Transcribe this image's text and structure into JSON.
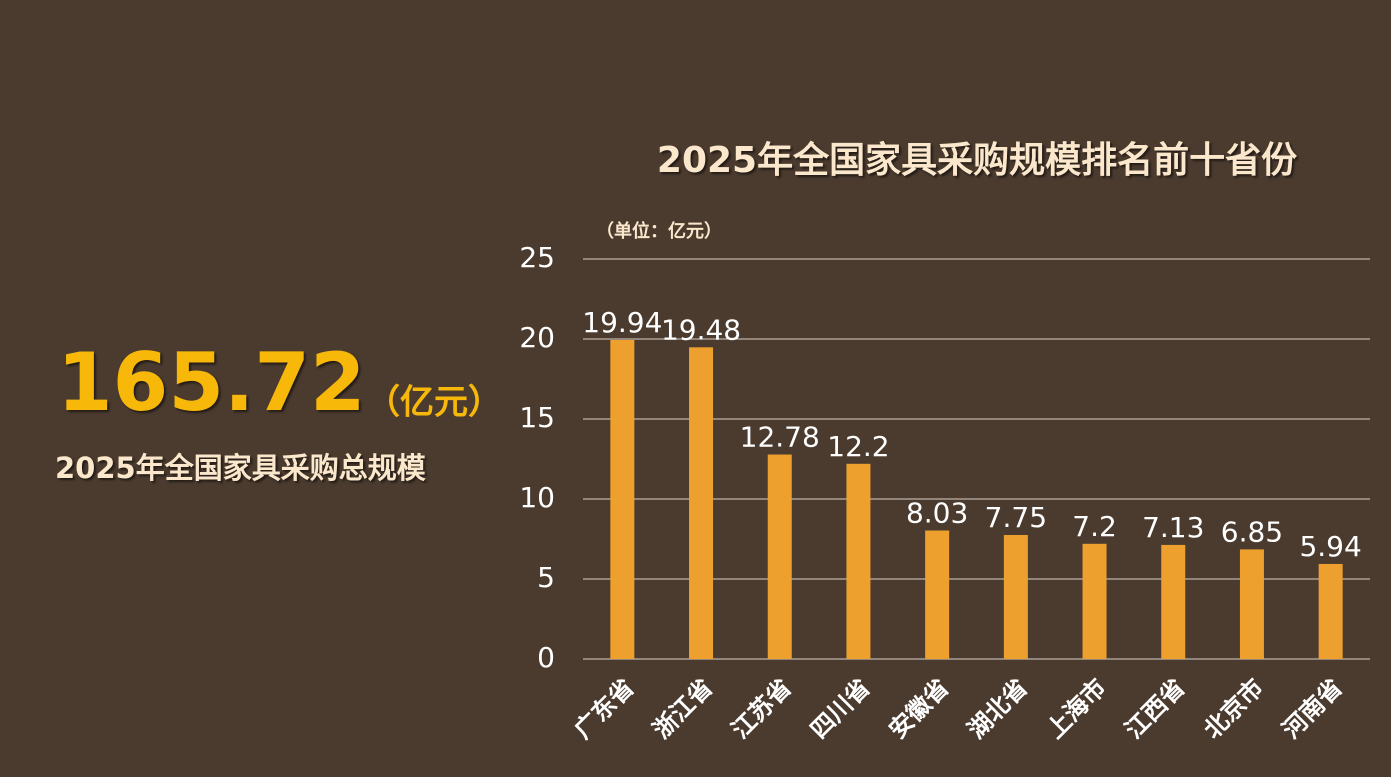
{
  "stat": {
    "value": 165.72,
    "unit": "（亿元）",
    "label": "2025年全国家具采购总规模"
  },
  "chart_data": {
    "type": "bar",
    "title": "2025年全国家具采购规模排名前十省份",
    "unit_label": "（单位：亿元）",
    "categories": [
      "广东省",
      "浙江省",
      "江苏省",
      "四川省",
      "安徽省",
      "湖北省",
      "上海市",
      "江西省",
      "北京市",
      "河南省"
    ],
    "values": [
      19.94,
      19.48,
      12.78,
      12.2,
      8.03,
      7.75,
      7.2,
      7.13,
      6.85,
      5.94
    ],
    "color": "#eea02e",
    "ylim": [
      0,
      25
    ],
    "yticks": [
      0,
      5,
      10,
      15,
      20,
      25
    ],
    "grid": true
  }
}
